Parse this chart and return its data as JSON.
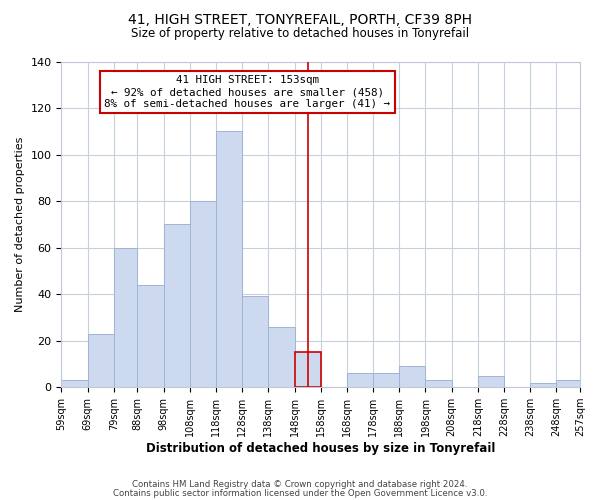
{
  "title": "41, HIGH STREET, TONYREFAIL, PORTH, CF39 8PH",
  "subtitle": "Size of property relative to detached houses in Tonyrefail",
  "xlabel": "Distribution of detached houses by size in Tonyrefail",
  "ylabel": "Number of detached properties",
  "bar_color": "#cdd9ee",
  "bar_edge_color": "#a0b4d4",
  "highlight_color": "#cc0000",
  "bin_edges": [
    59,
    69,
    79,
    88,
    98,
    108,
    118,
    128,
    138,
    148,
    158,
    168,
    178,
    188,
    198,
    208,
    218,
    228,
    238,
    248,
    257
  ],
  "bin_labels": [
    "59sqm",
    "69sqm",
    "79sqm",
    "88sqm",
    "98sqm",
    "108sqm",
    "118sqm",
    "128sqm",
    "138sqm",
    "148sqm",
    "158sqm",
    "168sqm",
    "178sqm",
    "188sqm",
    "198sqm",
    "208sqm",
    "218sqm",
    "228sqm",
    "238sqm",
    "248sqm",
    "257sqm"
  ],
  "counts": [
    3,
    23,
    60,
    44,
    70,
    80,
    110,
    39,
    26,
    15,
    0,
    6,
    6,
    9,
    3,
    0,
    5,
    0,
    2,
    3
  ],
  "property_size": 153,
  "property_label": "41 HIGH STREET: 153sqm",
  "annotation_line1": "← 92% of detached houses are smaller (458)",
  "annotation_line2": "8% of semi-detached houses are larger (41) →",
  "annotation_box_color": "#ffffff",
  "annotation_box_edge_color": "#cc0000",
  "ylim": [
    0,
    140
  ],
  "yticks": [
    0,
    20,
    40,
    60,
    80,
    100,
    120,
    140
  ],
  "footnote1": "Contains HM Land Registry data © Crown copyright and database right 2024.",
  "footnote2": "Contains public sector information licensed under the Open Government Licence v3.0.",
  "background_color": "#ffffff",
  "grid_color": "#c8d0dc"
}
